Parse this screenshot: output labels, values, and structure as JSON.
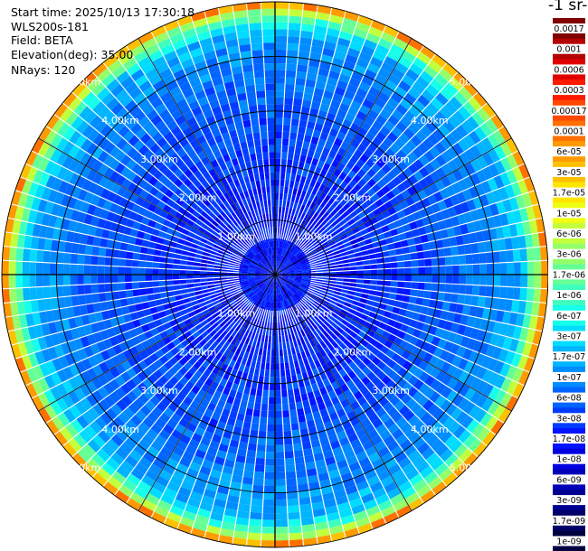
{
  "header": {
    "start_time": "Start time: 2025/10/13 17:30:18",
    "instrument": "WLS200s-181",
    "field": "Field: BETA",
    "elevation": "Elevation(deg): 35.00",
    "nrays": "NRays: 120",
    "unit_label": "-1 sr-"
  },
  "chart_data": {
    "type": "heatmap",
    "projection": "polar-ppi",
    "n_rays": 120,
    "max_range_km": 5.0,
    "range_rings": [
      {
        "km": 1.0,
        "label": "1.00km"
      },
      {
        "km": 2.0,
        "label": "2.00km"
      },
      {
        "km": 3.0,
        "label": "3.00km"
      },
      {
        "km": 4.0,
        "label": "4.00km"
      },
      {
        "km": 5.0,
        "label": "5.00km"
      }
    ],
    "radial_lines_deg": [
      0,
      30,
      60,
      90,
      120,
      150,
      180,
      210,
      240,
      270,
      300,
      330
    ],
    "colorbar": {
      "labels": [
        "0.0017",
        "0.001",
        "0.0006",
        "0.0003",
        "0.00017",
        "0.0001",
        "6e-05",
        "3e-05",
        "1.7e-05",
        "1e-05",
        "6e-06",
        "3e-06",
        "1.7e-06",
        "1e-06",
        "6e-07",
        "3e-07",
        "1.7e-07",
        "1e-07",
        "6e-08",
        "3e-08",
        "1.7e-08",
        "1e-08",
        "6e-09",
        "3e-09",
        "1.7e-09",
        "1e-09"
      ],
      "colors": [
        "#800000",
        "#b30000",
        "#e00000",
        "#ff1a00",
        "#ff4800",
        "#ff7000",
        "#ff9a00",
        "#ffc000",
        "#ffe600",
        "#f0ff10",
        "#c2ff3c",
        "#94ff6a",
        "#66ff96",
        "#3fffbf",
        "#16ffea",
        "#00dcff",
        "#00b4ff",
        "#008cff",
        "#0064ff",
        "#003cff",
        "#0014ff",
        "#0000e0",
        "#0000b8",
        "#000090",
        "#000068",
        "#000040"
      ]
    },
    "beta_profile": [
      {
        "range_km": 0.0,
        "beta": 2e-08
      },
      {
        "range_km": 1.0,
        "beta": 2e-08
      },
      {
        "range_km": 2.0,
        "beta": 3e-08
      },
      {
        "range_km": 3.0,
        "beta": 5e-08
      },
      {
        "range_km": 4.0,
        "beta": 1e-07
      },
      {
        "range_km": 4.5,
        "beta": 2e-07
      },
      {
        "range_km": 4.85,
        "beta": 5e-06
      },
      {
        "range_km": 4.95,
        "beta": 6e-05
      }
    ]
  }
}
